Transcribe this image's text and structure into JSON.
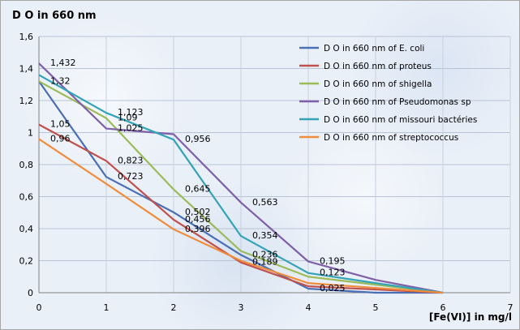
{
  "chart_data": {
    "type": "line",
    "title": "D O in 660 nm",
    "xlabel": "[Fe(VI)] in mg/l",
    "ylabel": "",
    "xlim": [
      0,
      7
    ],
    "ylim": [
      0,
      1.6
    ],
    "x_ticks": [
      "0",
      "1",
      "2",
      "3",
      "4",
      "5",
      "6",
      "7"
    ],
    "y_ticks": [
      "0",
      "0,2",
      "0,4",
      "0,6",
      "0,8",
      "1",
      "1,2",
      "1,4",
      "1,6"
    ],
    "grid": true,
    "legend_position": "top-right",
    "x": [
      0,
      1,
      2,
      3,
      4,
      5,
      6
    ],
    "series": [
      {
        "name": "D O in 660 nm of E. coli",
        "color": "#4a6fb5",
        "values": [
          1.32,
          0.723,
          0.502,
          0.236,
          0.025,
          0,
          0
        ]
      },
      {
        "name": "D O in 660 nm of proteus",
        "color": "#c0504d",
        "values": [
          1.05,
          0.823,
          0.456,
          0.189,
          0.04,
          0.02,
          0
        ]
      },
      {
        "name": "D O in 660 nm of shigella",
        "color": "#9bbb59",
        "values": [
          1.32,
          1.09,
          0.645,
          0.26,
          0.1,
          0.05,
          0
        ]
      },
      {
        "name": "D O in 660 nm of Pseudomonas sp",
        "color": "#7f5fa8",
        "values": [
          1.432,
          1.025,
          0.99,
          0.563,
          0.195,
          0.08,
          0
        ]
      },
      {
        "name": "D O in 660 nm of missouri bactéries",
        "color": "#33a3b8",
        "values": [
          1.36,
          1.123,
          0.956,
          0.354,
          0.123,
          0.06,
          0
        ]
      },
      {
        "name": "D O in 660 nm of streptococcus",
        "color": "#f08c3a",
        "values": [
          0.96,
          0.68,
          0.396,
          0.2,
          0.06,
          0.03,
          0
        ]
      }
    ],
    "data_labels": [
      {
        "text": "1,432",
        "x": 0,
        "y": 1.432
      },
      {
        "text": "1,32",
        "x": 0,
        "y": 1.32
      },
      {
        "text": "1,05",
        "x": 0,
        "y": 1.05
      },
      {
        "text": "0,96",
        "x": 0,
        "y": 0.96
      },
      {
        "text": "1,123",
        "x": 1,
        "y": 1.123
      },
      {
        "text": "1,09",
        "x": 1,
        "y": 1.09
      },
      {
        "text": "1,025",
        "x": 1,
        "y": 1.025
      },
      {
        "text": "0,823",
        "x": 1,
        "y": 0.823
      },
      {
        "text": "0,723",
        "x": 1,
        "y": 0.723
      },
      {
        "text": "0,956",
        "x": 2,
        "y": 0.956
      },
      {
        "text": "0,645",
        "x": 2,
        "y": 0.645
      },
      {
        "text": "0,502",
        "x": 2,
        "y": 0.502
      },
      {
        "text": "0,456",
        "x": 2,
        "y": 0.456
      },
      {
        "text": "0,396",
        "x": 2,
        "y": 0.396
      },
      {
        "text": "0,563",
        "x": 3,
        "y": 0.563
      },
      {
        "text": "0,354",
        "x": 3,
        "y": 0.354
      },
      {
        "text": "0,236",
        "x": 3,
        "y": 0.236
      },
      {
        "text": "0,189",
        "x": 3,
        "y": 0.189
      },
      {
        "text": "0,195",
        "x": 4,
        "y": 0.195
      },
      {
        "text": "0,123",
        "x": 4,
        "y": 0.123
      },
      {
        "text": "0,025",
        "x": 4,
        "y": 0.025
      }
    ]
  }
}
